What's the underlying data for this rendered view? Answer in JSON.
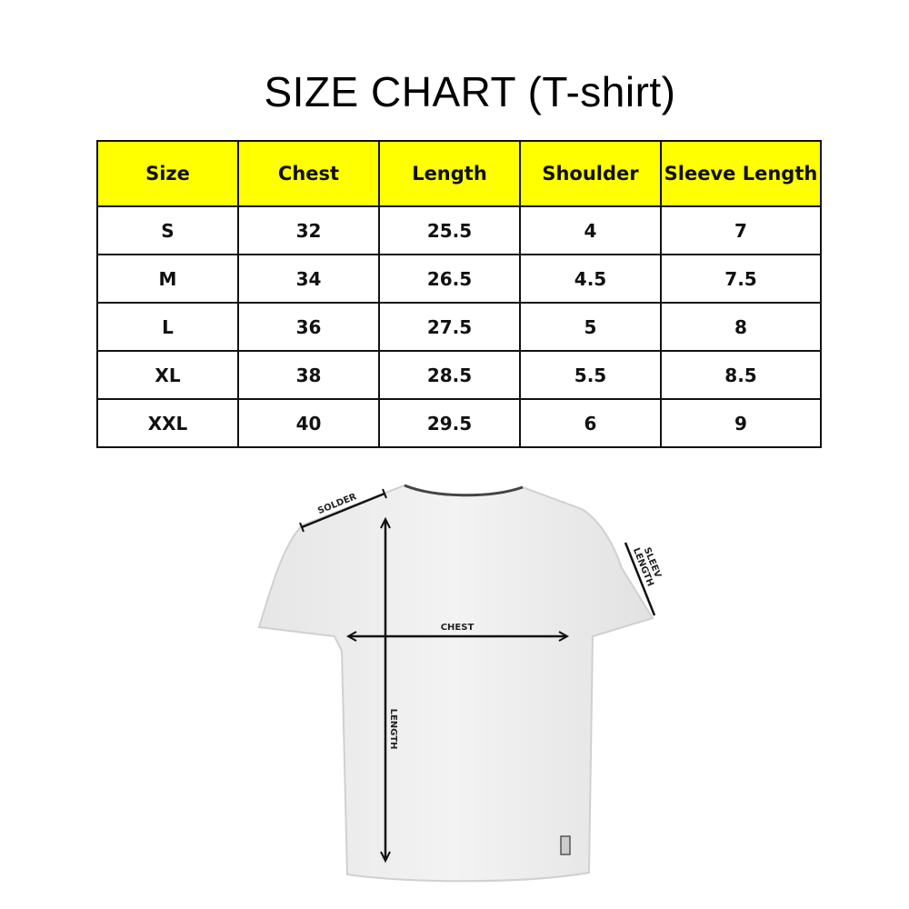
{
  "title": "SIZE CHART (T-shirt)",
  "table": {
    "headers": [
      "Size",
      "Chest",
      "Length",
      "Shoulder",
      "Sleeve Length"
    ],
    "rows": [
      [
        "S",
        "32",
        "25.5",
        "4",
        "7"
      ],
      [
        "M",
        "34",
        "26.5",
        "4.5",
        "7.5"
      ],
      [
        "L",
        "36",
        "27.5",
        "5",
        "8"
      ],
      [
        "XL",
        "38",
        "28.5",
        "5.5",
        "8.5"
      ],
      [
        "XXL",
        "40",
        "29.5",
        "6",
        "9"
      ]
    ],
    "header_color": "#ffff00"
  },
  "diagram": {
    "labels": {
      "shoulder": "SOLDER",
      "sleeve_1": "SLEEV",
      "sleeve_2": "LENGTH",
      "chest": "CHEST",
      "length": "LENGTH"
    }
  }
}
